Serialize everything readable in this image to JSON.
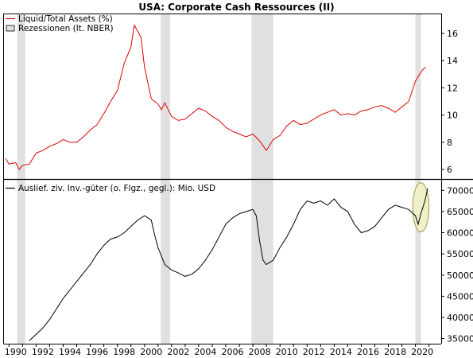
{
  "chart_data": {
    "type": "line",
    "title": "USA: Corporate Cash Ressources (II)",
    "x_ticks": [
      "1990",
      "1992",
      "1994",
      "1996",
      "1998",
      "2000",
      "2002",
      "2004",
      "2006",
      "2008",
      "2010",
      "2012",
      "2014",
      "2016",
      "2018",
      "2020"
    ],
    "recessions": [
      [
        1990.6,
        1991.2
      ],
      [
        2001.2,
        2001.9
      ],
      [
        2007.9,
        2009.5
      ],
      [
        2020.0,
        2020.4
      ]
    ],
    "colors": {
      "top_line": "#dd0000",
      "bottom_line": "#000000",
      "recession": "#e0e0e0",
      "highlight_fill": "#f2f0c8",
      "highlight_stroke": "#9a9a50"
    },
    "panels": [
      {
        "name": "top",
        "ylim": [
          5.3,
          17.4
        ],
        "y_ticks": [
          "6",
          "8",
          "10",
          "12",
          "14",
          "16"
        ],
        "legend": [
          "Liquid/Total Assets (%)",
          "Rezessionen (lt. NBER)"
        ],
        "series": {
          "name": "Liquid/Total Assets (%)",
          "points": [
            [
              1989.75,
              6.8
            ],
            [
              1990.0,
              6.4
            ],
            [
              1990.5,
              6.5
            ],
            [
              1990.75,
              6.0
            ],
            [
              1991.0,
              6.3
            ],
            [
              1991.5,
              6.4
            ],
            [
              1992.0,
              7.2
            ],
            [
              1992.5,
              7.4
            ],
            [
              1993.0,
              7.7
            ],
            [
              1993.5,
              7.9
            ],
            [
              1994.0,
              8.2
            ],
            [
              1994.5,
              8.0
            ],
            [
              1995.0,
              8.0
            ],
            [
              1995.5,
              8.4
            ],
            [
              1996.0,
              8.9
            ],
            [
              1996.5,
              9.3
            ],
            [
              1997.0,
              10.1
            ],
            [
              1997.5,
              11.0
            ],
            [
              1998.0,
              11.8
            ],
            [
              1998.5,
              13.8
            ],
            [
              1999.0,
              15.0
            ],
            [
              1999.25,
              16.6
            ],
            [
              1999.75,
              15.7
            ],
            [
              2000.0,
              13.5
            ],
            [
              2000.5,
              11.2
            ],
            [
              2001.0,
              10.8
            ],
            [
              2001.25,
              10.4
            ],
            [
              2001.5,
              10.9
            ],
            [
              2002.0,
              9.9
            ],
            [
              2002.5,
              9.6
            ],
            [
              2003.0,
              9.7
            ],
            [
              2003.5,
              10.1
            ],
            [
              2004.0,
              10.5
            ],
            [
              2004.5,
              10.3
            ],
            [
              2005.0,
              9.9
            ],
            [
              2005.5,
              9.6
            ],
            [
              2006.0,
              9.1
            ],
            [
              2006.5,
              8.8
            ],
            [
              2007.0,
              8.6
            ],
            [
              2007.5,
              8.4
            ],
            [
              2008.0,
              8.6
            ],
            [
              2008.5,
              8.1
            ],
            [
              2009.0,
              7.4
            ],
            [
              2009.5,
              8.2
            ],
            [
              2010.0,
              8.5
            ],
            [
              2010.5,
              9.2
            ],
            [
              2011.0,
              9.6
            ],
            [
              2011.5,
              9.3
            ],
            [
              2012.0,
              9.4
            ],
            [
              2012.5,
              9.7
            ],
            [
              2013.0,
              10.0
            ],
            [
              2013.5,
              10.2
            ],
            [
              2014.0,
              10.4
            ],
            [
              2014.5,
              10.0
            ],
            [
              2015.0,
              10.1
            ],
            [
              2015.5,
              10.0
            ],
            [
              2016.0,
              10.3
            ],
            [
              2016.5,
              10.4
            ],
            [
              2017.0,
              10.6
            ],
            [
              2017.5,
              10.7
            ],
            [
              2018.0,
              10.5
            ],
            [
              2018.5,
              10.2
            ],
            [
              2019.0,
              10.6
            ],
            [
              2019.5,
              11.0
            ],
            [
              2020.0,
              12.5
            ],
            [
              2020.5,
              13.3
            ],
            [
              2020.75,
              13.5
            ]
          ]
        }
      },
      {
        "name": "bottom",
        "ylim": [
          33800,
          72500
        ],
        "y_ticks": [
          "35000",
          "40000",
          "45000",
          "50000",
          "55000",
          "60000",
          "65000",
          "70000"
        ],
        "legend": [
          "Auslief. ziv. Inv.-güter (o. Flgz., gegl.): Mio. USD"
        ],
        "series": {
          "name": "Auslief. ziv. Inv.-güter (o. Flgz., gegl.): Mio. USD",
          "points": [
            [
              1991.5,
              34500
            ],
            [
              1992.0,
              36000
            ],
            [
              1992.5,
              37500
            ],
            [
              1993.0,
              39500
            ],
            [
              1993.5,
              42000
            ],
            [
              1994.0,
              44500
            ],
            [
              1994.5,
              46500
            ],
            [
              1995.0,
              48500
            ],
            [
              1995.5,
              50500
            ],
            [
              1996.0,
              52500
            ],
            [
              1996.5,
              55000
            ],
            [
              1997.0,
              57000
            ],
            [
              1997.5,
              58500
            ],
            [
              1998.0,
              59000
            ],
            [
              1998.5,
              60000
            ],
            [
              1999.0,
              61500
            ],
            [
              1999.5,
              63000
            ],
            [
              2000.0,
              64000
            ],
            [
              2000.5,
              63000
            ],
            [
              2000.75,
              59500
            ],
            [
              2001.0,
              56500
            ],
            [
              2001.5,
              52500
            ],
            [
              2002.0,
              51200
            ],
            [
              2002.5,
              50500
            ],
            [
              2003.0,
              49700
            ],
            [
              2003.5,
              50200
            ],
            [
              2004.0,
              51500
            ],
            [
              2004.5,
              53500
            ],
            [
              2005.0,
              56000
            ],
            [
              2005.5,
              59000
            ],
            [
              2006.0,
              62000
            ],
            [
              2006.5,
              63500
            ],
            [
              2007.0,
              64500
            ],
            [
              2007.5,
              65000
            ],
            [
              2008.0,
              65500
            ],
            [
              2008.25,
              64000
            ],
            [
              2008.5,
              58000
            ],
            [
              2008.75,
              53500
            ],
            [
              2009.0,
              52500
            ],
            [
              2009.5,
              53500
            ],
            [
              2010.0,
              56500
            ],
            [
              2010.5,
              59000
            ],
            [
              2011.0,
              62000
            ],
            [
              2011.5,
              65500
            ],
            [
              2012.0,
              67500
            ],
            [
              2012.5,
              67000
            ],
            [
              2013.0,
              67500
            ],
            [
              2013.5,
              66500
            ],
            [
              2014.0,
              68000
            ],
            [
              2014.5,
              66000
            ],
            [
              2015.0,
              65000
            ],
            [
              2015.5,
              62000
            ],
            [
              2016.0,
              60000
            ],
            [
              2016.5,
              60500
            ],
            [
              2017.0,
              61500
            ],
            [
              2017.5,
              63500
            ],
            [
              2018.0,
              65500
            ],
            [
              2018.5,
              66500
            ],
            [
              2019.0,
              66000
            ],
            [
              2019.5,
              65500
            ],
            [
              2020.0,
              64000
            ],
            [
              2020.2,
              62000
            ],
            [
              2020.4,
              64500
            ],
            [
              2020.7,
              67500
            ],
            [
              2020.9,
              70500
            ]
          ]
        },
        "annotation": {
          "type": "ellipse",
          "x_center": 2020.4,
          "y_center": 66000,
          "x_half_range": 0.6,
          "y_half_range": 5800
        }
      }
    ]
  }
}
